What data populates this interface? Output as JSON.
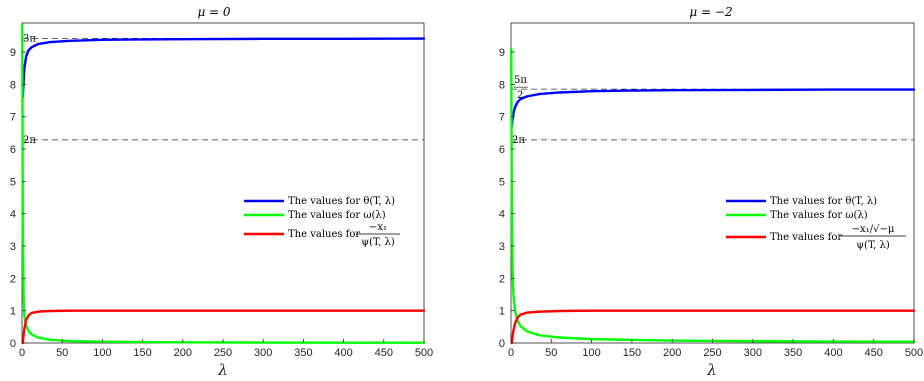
{
  "chart_data": [
    {
      "type": "line",
      "title": "μ = 0",
      "xlabel": "λ",
      "ylabel": "",
      "xlim": [
        0,
        500
      ],
      "ylim": [
        0,
        9.9
      ],
      "xticks": [
        "0",
        "50",
        "100",
        "150",
        "200",
        "250",
        "300",
        "350",
        "400",
        "450",
        "500"
      ],
      "yticks": [
        "0",
        "1",
        "2",
        "3",
        "4",
        "5",
        "6",
        "7",
        "8",
        "9"
      ],
      "grid": false,
      "legend_position": "center-right",
      "reference_lines": [
        {
          "y": 9.42478,
          "label": "3π"
        },
        {
          "y": 6.28319,
          "label": "2π"
        }
      ],
      "series": [
        {
          "name": "The values for θ(T, λ)",
          "color": "#0000ff",
          "x": [
            1,
            2,
            3,
            5,
            8,
            12,
            20,
            35,
            60,
            100,
            150,
            200,
            300,
            400,
            500
          ],
          "y": [
            7.6,
            8.1,
            8.5,
            8.85,
            9.05,
            9.15,
            9.25,
            9.31,
            9.35,
            9.38,
            9.39,
            9.4,
            9.41,
            9.41,
            9.42
          ]
        },
        {
          "name": "The values for ω(λ)",
          "color": "#00ff00",
          "x": [
            0.3,
            0.6,
            1,
            2,
            3,
            5,
            8,
            12,
            20,
            35,
            60,
            100,
            200,
            300,
            400,
            500
          ],
          "y": [
            9.85,
            7.5,
            3.5,
            1.4,
            0.85,
            0.55,
            0.38,
            0.27,
            0.17,
            0.1,
            0.06,
            0.04,
            0.02,
            0.015,
            0.01,
            0.01
          ]
        },
        {
          "name": "The values for (−x₁)/(ψ(T, λ))",
          "color": "#ff0000",
          "x": [
            1,
            2,
            3,
            5,
            8,
            12,
            20,
            35,
            60,
            100,
            200,
            300,
            400,
            500
          ],
          "y": [
            0.0,
            0.25,
            0.45,
            0.7,
            0.85,
            0.93,
            0.97,
            0.99,
            1.0,
            1.0,
            1.0,
            1.0,
            1.0,
            1.0
          ]
        }
      ],
      "legend_text": {
        "theta": "The values for θ(T, λ)",
        "omega": "The values for ω(λ)",
        "psi_prefix": "The values for",
        "psi_num": "−x₁",
        "psi_den": "ψ(T, λ)"
      }
    },
    {
      "type": "line",
      "title": "μ = −2",
      "xlabel": "λ",
      "ylabel": "",
      "xlim": [
        0,
        500
      ],
      "ylim": [
        0,
        9.9
      ],
      "xticks": [
        "0",
        "50",
        "100",
        "150",
        "200",
        "250",
        "300",
        "350",
        "400",
        "450",
        "500"
      ],
      "yticks": [
        "0",
        "1",
        "2",
        "3",
        "4",
        "5",
        "6",
        "7",
        "8",
        "9"
      ],
      "grid": false,
      "legend_position": "center-right",
      "reference_lines": [
        {
          "y": 7.85398,
          "label": "5π/2"
        },
        {
          "y": 6.28319,
          "label": "2π"
        }
      ],
      "series": [
        {
          "name": "The values for θ(T, λ)",
          "color": "#0000ff",
          "x": [
            1,
            2,
            3,
            5,
            8,
            12,
            20,
            35,
            60,
            100,
            150,
            200,
            300,
            400,
            500
          ],
          "y": [
            6.7,
            6.95,
            7.1,
            7.3,
            7.45,
            7.55,
            7.63,
            7.7,
            7.75,
            7.79,
            7.81,
            7.82,
            7.83,
            7.84,
            7.84
          ]
        },
        {
          "name": "The values for ω(λ)",
          "color": "#00ff00",
          "x": [
            0.3,
            0.6,
            1,
            2,
            3,
            5,
            8,
            12,
            20,
            35,
            60,
            100,
            200,
            300,
            400,
            500
          ],
          "y": [
            9.1,
            7.0,
            4.5,
            2.2,
            1.5,
            1.0,
            0.7,
            0.52,
            0.36,
            0.24,
            0.17,
            0.12,
            0.075,
            0.055,
            0.045,
            0.04
          ]
        },
        {
          "name": "The values for (−x₁/√−μ)/(ψ(T, λ))",
          "color": "#ff0000",
          "x": [
            1,
            2,
            3,
            5,
            8,
            12,
            20,
            35,
            60,
            100,
            200,
            300,
            400,
            500
          ],
          "y": [
            0.0,
            0.2,
            0.38,
            0.6,
            0.78,
            0.88,
            0.94,
            0.97,
            0.99,
            1.0,
            1.0,
            1.0,
            1.0,
            1.0
          ]
        }
      ],
      "legend_text": {
        "theta": "The values for θ(T, λ)",
        "omega": "The values for ω(λ)",
        "psi_prefix": "The values for",
        "psi_num": "−x₁/√−μ",
        "psi_den": "ψ(T, λ)"
      }
    }
  ]
}
